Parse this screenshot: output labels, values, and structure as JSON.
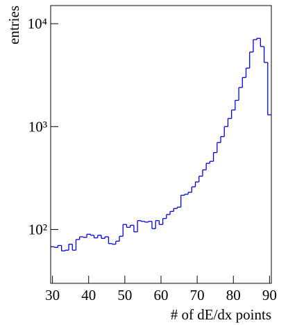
{
  "chart_data": {
    "type": "histogram",
    "x_label": "# of dE/dx points",
    "y_label": "entries",
    "bins": [
      29.5,
      30.5,
      31.5,
      32.5,
      33.5,
      34.5,
      35.5,
      36.5,
      37.5,
      38.5,
      39.5,
      40.5,
      41.5,
      42.5,
      43.5,
      44.5,
      45.5,
      46.5,
      47.5,
      48.5,
      49.5,
      50.5,
      51.5,
      52.5,
      53.5,
      54.5,
      55.5,
      56.5,
      57.5,
      58.5,
      59.5,
      60.5,
      61.5,
      62.5,
      63.5,
      64.5,
      65.5,
      66.5,
      67.5,
      68.5,
      69.5,
      70.5,
      71.5,
      72.5,
      73.5,
      74.5,
      75.5,
      76.5,
      77.5,
      78.5,
      79.5,
      80.5,
      81.5,
      82.5,
      83.5,
      84.5,
      85.5,
      86.5,
      87.5,
      88.5,
      89.5,
      90.5
    ],
    "values": [
      68,
      67,
      70,
      62,
      63,
      72,
      63,
      80,
      85,
      84,
      90,
      88,
      83,
      88,
      82,
      85,
      73,
      72,
      77,
      86,
      112,
      105,
      110,
      95,
      122,
      120,
      118,
      120,
      102,
      122,
      112,
      128,
      140,
      150,
      160,
      165,
      215,
      220,
      230,
      260,
      290,
      330,
      380,
      440,
      460,
      560,
      700,
      800,
      1000,
      1200,
      1450,
      1800,
      2400,
      3000,
      3700,
      5300,
      7000,
      7200,
      6000,
      4200,
      1300
    ],
    "color": "#0000ee",
    "xlim": [
      29.5,
      90.5
    ],
    "xticks": [
      30,
      40,
      50,
      60,
      70,
      80,
      90
    ],
    "ylim": [
      30,
      15000
    ],
    "yticks": [
      {
        "value": 100,
        "label": "10²"
      },
      {
        "value": 1000,
        "label": "10³"
      },
      {
        "value": 10000,
        "label": "10⁴"
      }
    ],
    "log_y": true
  }
}
